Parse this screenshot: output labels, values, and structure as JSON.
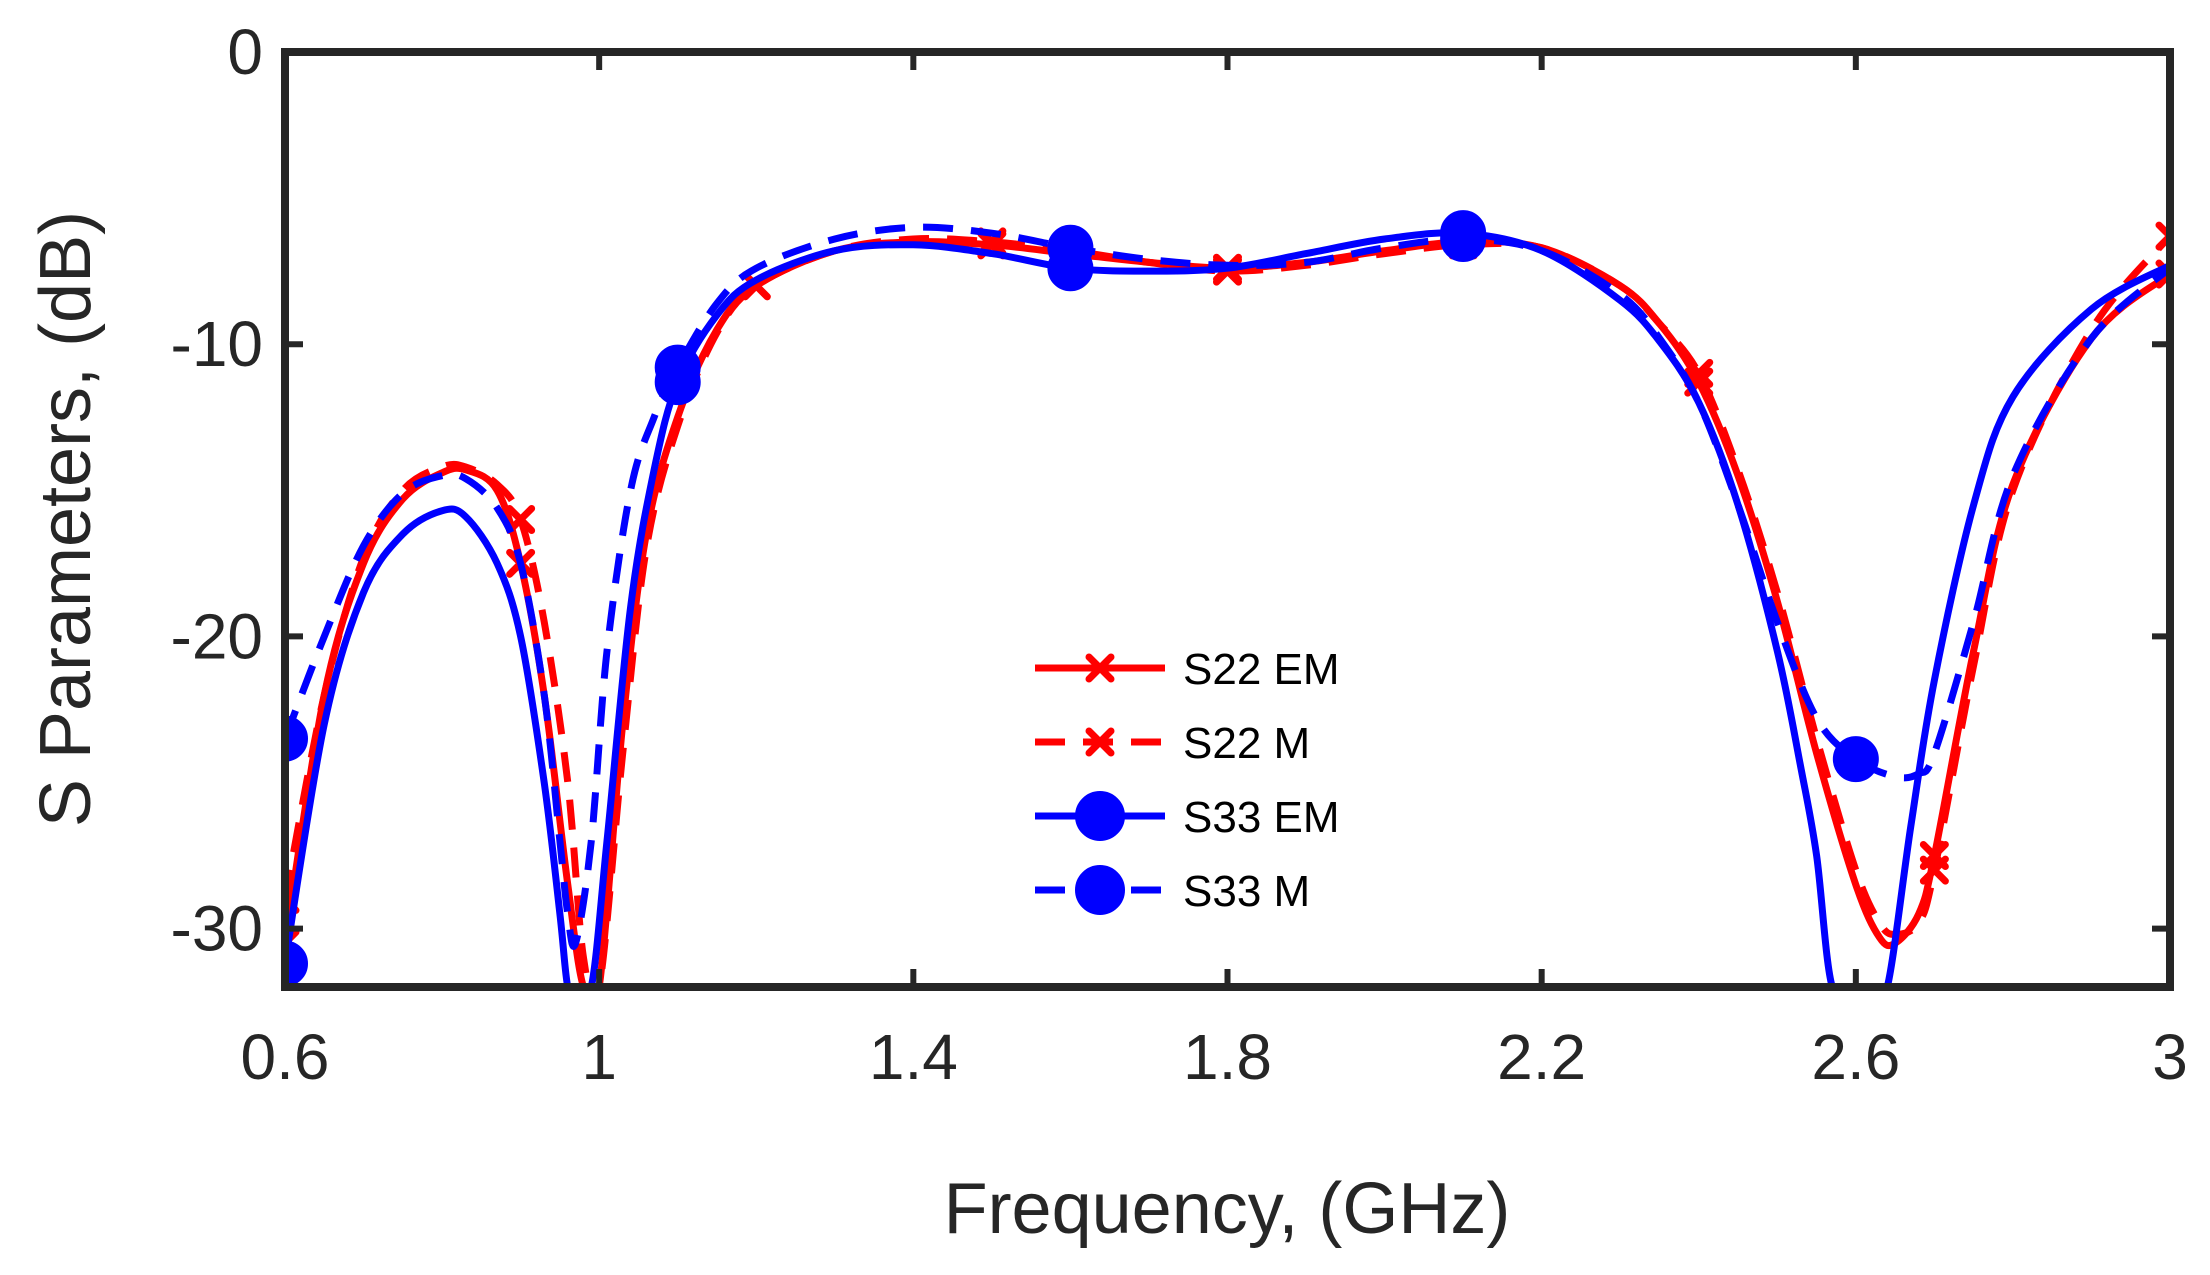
{
  "chart_data": {
    "type": "line",
    "title": "",
    "xlabel": "Frequency, (GHz)",
    "ylabel": "S Parameters, (dB)",
    "xlim": [
      0.6,
      3.0
    ],
    "ylim": [
      -32,
      0
    ],
    "grid": false,
    "legend_position": "center",
    "x_ticks": [
      0.6,
      1.0,
      1.4,
      1.8,
      2.2,
      2.6,
      3.0
    ],
    "x_tick_labels": [
      "0.6",
      "1",
      "1.4",
      "1.8",
      "2.2",
      "2.6",
      "3"
    ],
    "y_ticks": [
      0,
      -10,
      -20,
      -30
    ],
    "y_tick_labels": [
      "0",
      "-10",
      "-20",
      "-30"
    ],
    "series": [
      {
        "name": "S22 EM",
        "color": "#ff0000",
        "dash": "solid",
        "marker": "x",
        "marker_x": [
          0.6,
          0.9,
          1.2,
          1.5,
          1.8,
          2.1,
          2.4,
          2.7,
          3.0
        ],
        "x": [
          0.6,
          0.65,
          0.7,
          0.75,
          0.8,
          0.83,
          0.87,
          0.9,
          0.93,
          0.96,
          0.98,
          1.0,
          1.03,
          1.06,
          1.1,
          1.15,
          1.2,
          1.3,
          1.4,
          1.5,
          1.6,
          1.7,
          1.8,
          1.9,
          2.0,
          2.1,
          2.2,
          2.3,
          2.35,
          2.4,
          2.45,
          2.5,
          2.55,
          2.6,
          2.63,
          2.65,
          2.68,
          2.7,
          2.75,
          2.8,
          2.9,
          3.0
        ],
        "y": [
          -30.5,
          -22.0,
          -17.5,
          -15.3,
          -14.4,
          -14.3,
          -15.0,
          -17.5,
          -22.0,
          -28.5,
          -32.0,
          -32.0,
          -23.0,
          -16.5,
          -12.5,
          -9.5,
          -8.0,
          -6.8,
          -6.5,
          -6.6,
          -6.9,
          -7.2,
          -7.4,
          -7.2,
          -6.8,
          -6.5,
          -6.7,
          -8.0,
          -9.3,
          -11.3,
          -14.5,
          -18.8,
          -24.0,
          -28.5,
          -30.3,
          -30.5,
          -29.5,
          -27.5,
          -20.5,
          -14.8,
          -9.8,
          -7.6
        ]
      },
      {
        "name": "S22 M",
        "color": "#ff0000",
        "dash": "dashed",
        "marker": "x",
        "marker_x": [
          0.6,
          0.9,
          1.2,
          1.5,
          1.8,
          2.1,
          2.4,
          2.7,
          3.0
        ],
        "x": [
          0.6,
          0.65,
          0.7,
          0.75,
          0.8,
          0.83,
          0.87,
          0.9,
          0.93,
          0.96,
          0.98,
          1.0,
          1.03,
          1.06,
          1.1,
          1.15,
          1.2,
          1.3,
          1.4,
          1.5,
          1.6,
          1.7,
          1.8,
          1.9,
          2.0,
          2.1,
          2.2,
          2.3,
          2.35,
          2.4,
          2.45,
          2.5,
          2.55,
          2.6,
          2.63,
          2.65,
          2.68,
          2.7,
          2.75,
          2.8,
          2.9,
          3.0
        ],
        "y": [
          -29.0,
          -22.0,
          -17.3,
          -15.0,
          -14.2,
          -14.2,
          -14.8,
          -16.0,
          -19.5,
          -25.0,
          -31.0,
          -32.0,
          -24.0,
          -17.0,
          -12.8,
          -9.6,
          -8.0,
          -6.8,
          -6.4,
          -6.5,
          -6.8,
          -7.2,
          -7.5,
          -7.3,
          -6.9,
          -6.6,
          -6.7,
          -8.0,
          -9.3,
          -11.0,
          -14.3,
          -18.5,
          -23.5,
          -28.0,
          -29.8,
          -30.2,
          -29.8,
          -28.0,
          -21.0,
          -15.0,
          -9.5,
          -6.3
        ]
      },
      {
        "name": "S33 EM",
        "color": "#0000ff",
        "dash": "solid",
        "marker": "o",
        "marker_x": [
          0.6,
          1.1,
          1.6,
          2.1
        ],
        "x": [
          0.6,
          0.65,
          0.7,
          0.75,
          0.8,
          0.83,
          0.87,
          0.9,
          0.93,
          0.95,
          0.96,
          0.97,
          0.99,
          1.01,
          1.04,
          1.07,
          1.1,
          1.15,
          1.2,
          1.3,
          1.4,
          1.5,
          1.6,
          1.7,
          1.8,
          1.9,
          2.0,
          2.1,
          2.2,
          2.3,
          2.35,
          2.4,
          2.45,
          2.5,
          2.53,
          2.55,
          2.57,
          2.6,
          2.62,
          2.64,
          2.67,
          2.7,
          2.75,
          2.8,
          2.9,
          3.0
        ],
        "y": [
          -31.2,
          -23.0,
          -18.5,
          -16.5,
          -15.7,
          -15.9,
          -17.5,
          -20.0,
          -25.0,
          -29.5,
          -32.0,
          -32.0,
          -32.0,
          -27.0,
          -19.0,
          -14.3,
          -11.3,
          -9.0,
          -7.8,
          -6.8,
          -6.6,
          -6.9,
          -7.4,
          -7.5,
          -7.4,
          -6.9,
          -6.4,
          -6.2,
          -6.8,
          -8.5,
          -9.9,
          -12.0,
          -15.5,
          -20.5,
          -24.5,
          -27.5,
          -32.0,
          -32.0,
          -32.0,
          -32.0,
          -26.5,
          -21.5,
          -15.5,
          -11.8,
          -8.8,
          -7.3
        ]
      },
      {
        "name": "S33 M",
        "color": "#0000ff",
        "dash": "dashed",
        "marker": "o",
        "marker_x": [
          0.6,
          1.1,
          1.6,
          2.1,
          2.6
        ],
        "x": [
          0.6,
          0.65,
          0.7,
          0.75,
          0.8,
          0.83,
          0.87,
          0.9,
          0.93,
          0.95,
          0.96,
          0.97,
          0.99,
          1.01,
          1.04,
          1.07,
          1.1,
          1.15,
          1.2,
          1.3,
          1.4,
          1.5,
          1.6,
          1.7,
          1.8,
          1.9,
          2.0,
          2.1,
          2.2,
          2.3,
          2.35,
          2.4,
          2.45,
          2.5,
          2.55,
          2.6,
          2.65,
          2.68,
          2.7,
          2.75,
          2.8,
          2.9,
          3.0
        ],
        "y": [
          -23.5,
          -20.0,
          -16.9,
          -15.1,
          -14.5,
          -14.6,
          -15.6,
          -17.5,
          -22.0,
          -27.0,
          -29.5,
          -30.5,
          -27.0,
          -20.5,
          -15.0,
          -12.5,
          -10.8,
          -8.6,
          -7.4,
          -6.4,
          -6.0,
          -6.2,
          -6.7,
          -7.1,
          -7.3,
          -7.2,
          -6.7,
          -6.4,
          -6.8,
          -8.3,
          -9.8,
          -12.0,
          -15.5,
          -19.5,
          -22.8,
          -24.2,
          -24.8,
          -24.7,
          -24.0,
          -19.5,
          -14.5,
          -9.8,
          -7.4
        ]
      }
    ]
  }
}
